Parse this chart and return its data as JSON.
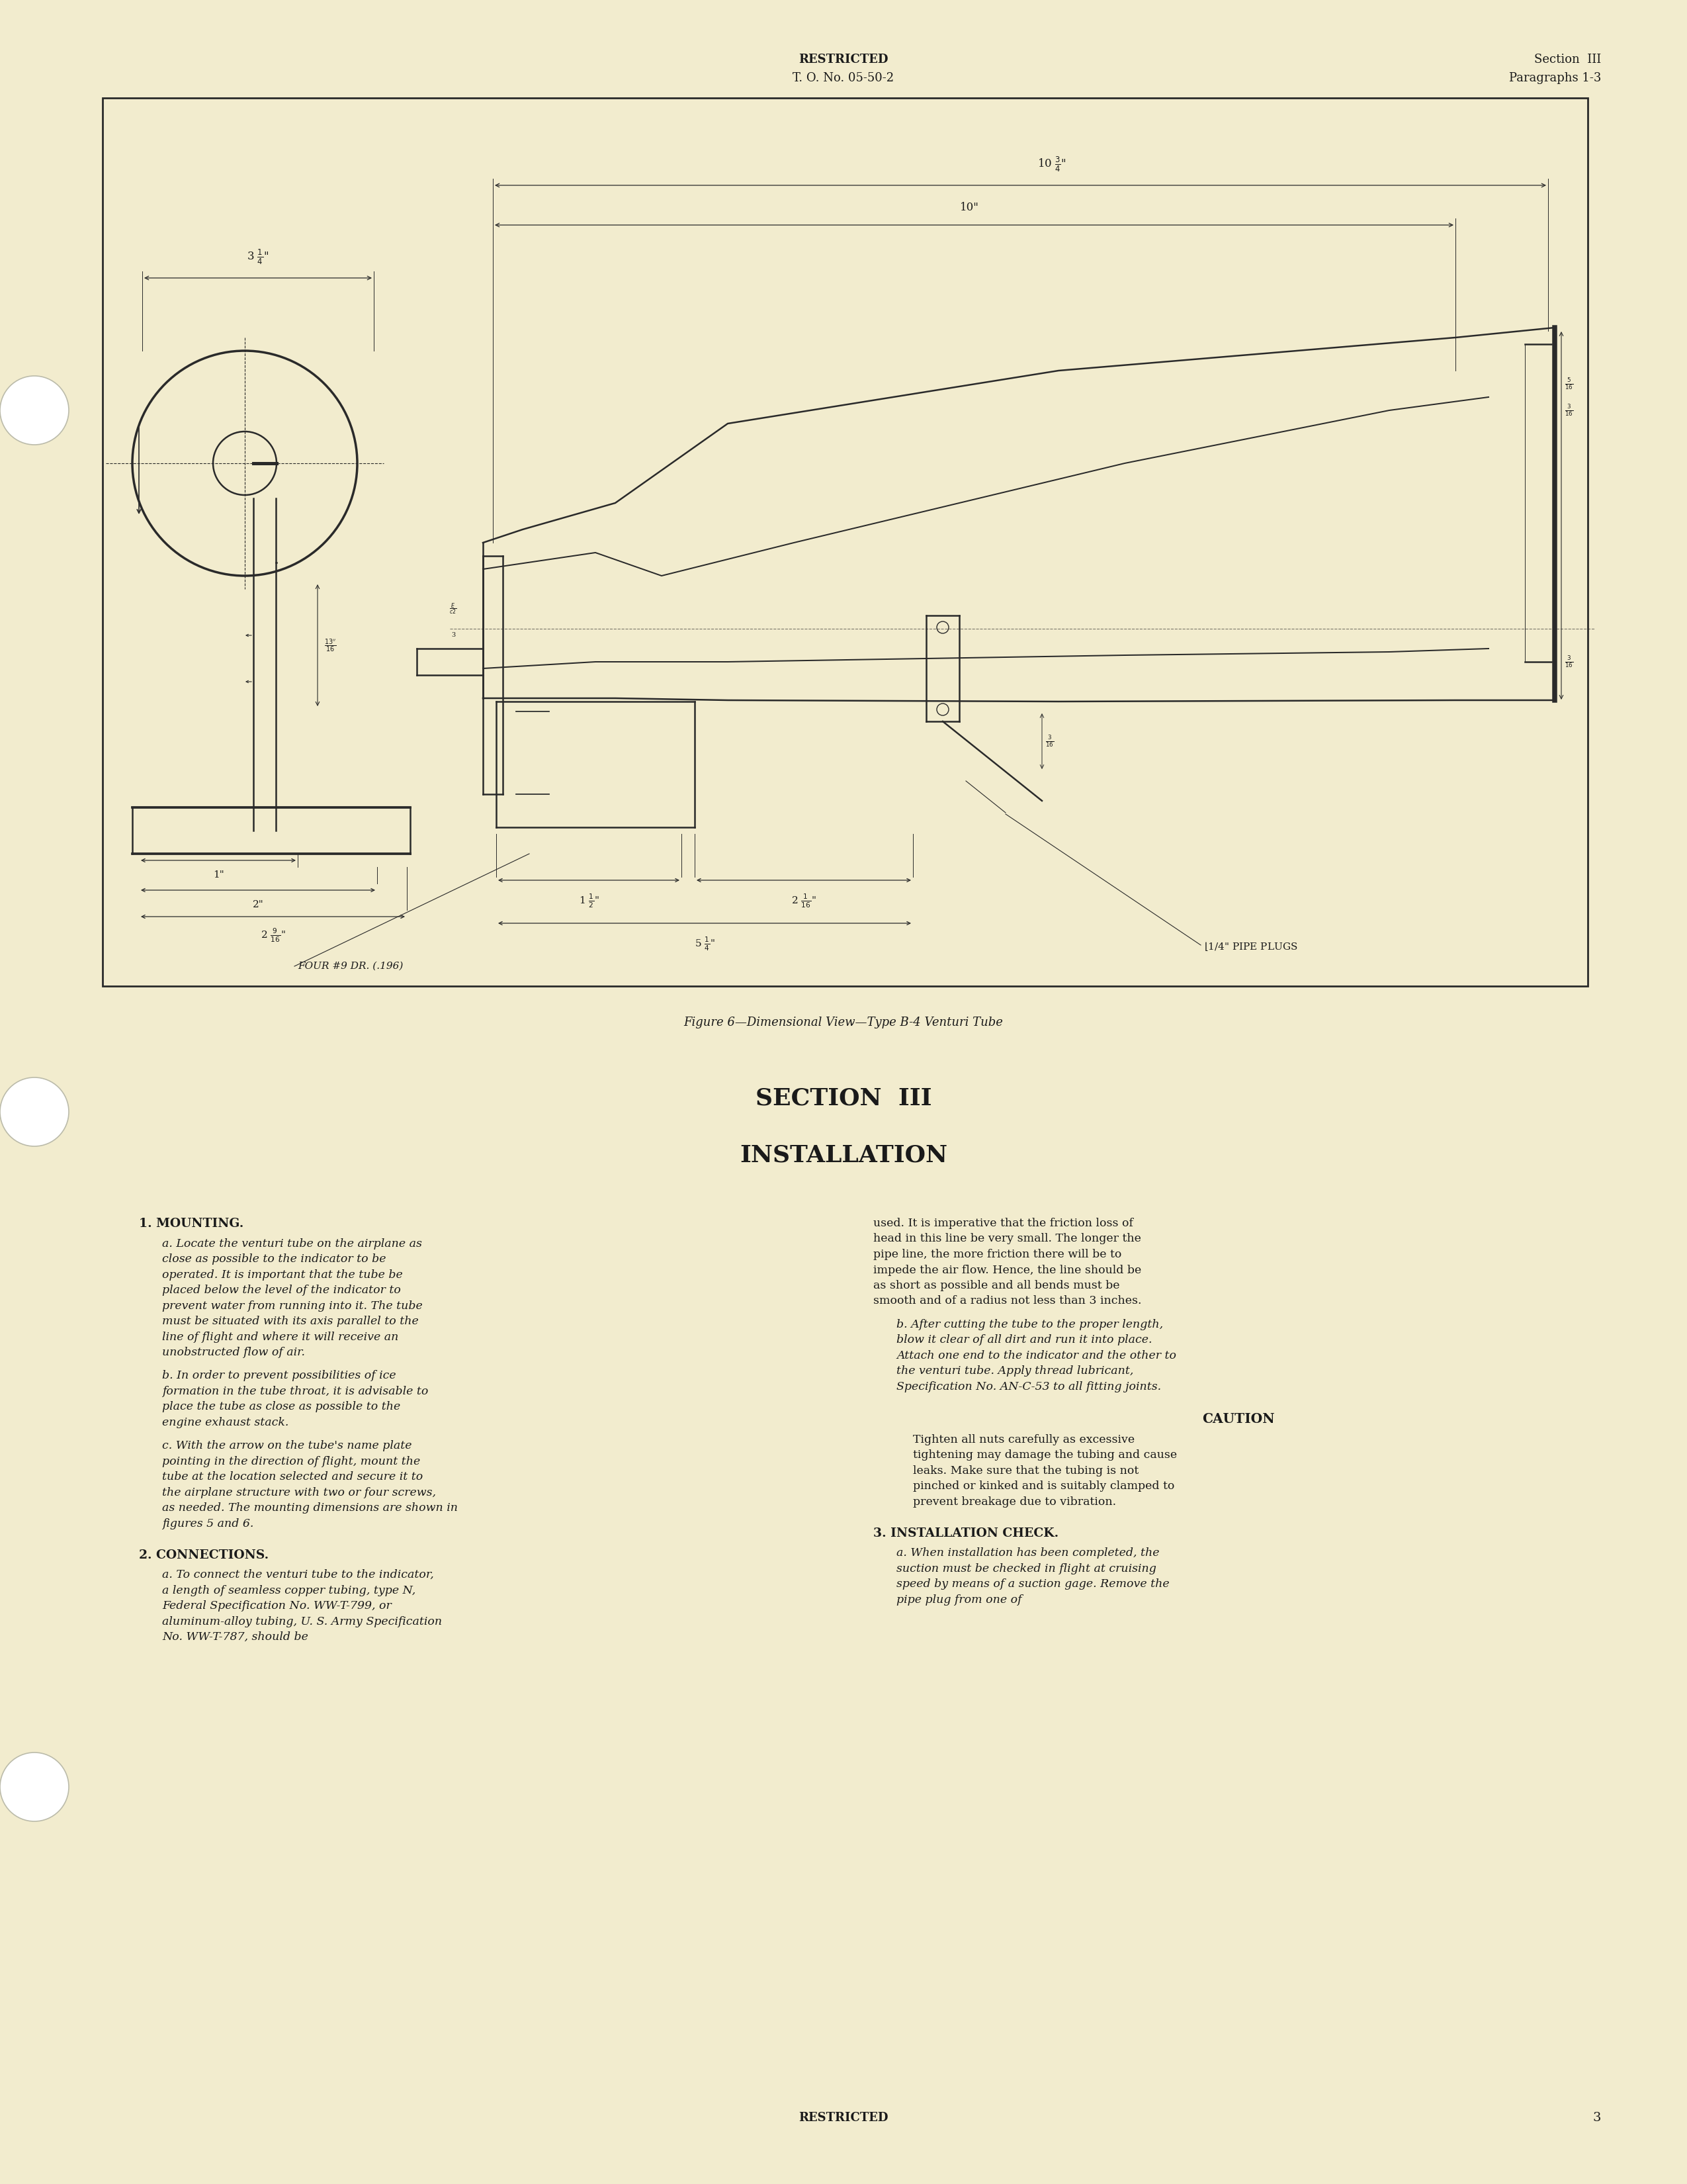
{
  "bg_color": "#f2ecce",
  "page_width": 25.5,
  "page_height": 33.0,
  "header_restricted": "RESTRICTED",
  "header_to": "T. O. No. 05-50-2",
  "header_section": "Section  III",
  "header_para": "Paragraphs 1-3",
  "figure_caption": "Figure 6—Dimensional View—Type B-4 Venturi Tube",
  "section_title": "SECTION  III",
  "section_subtitle": "INSTALLATION",
  "footer_restricted": "RESTRICTED",
  "footer_page": "3",
  "text_color": "#1a1a1a"
}
